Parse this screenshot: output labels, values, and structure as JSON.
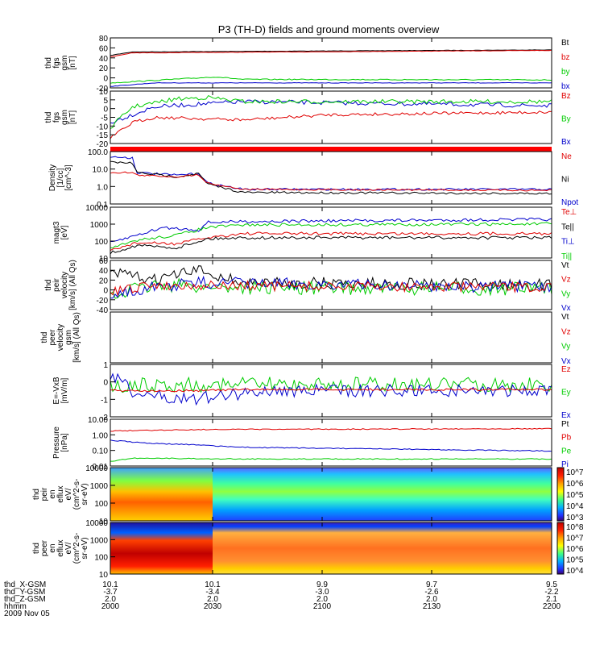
{
  "title": "P3 (TH-D) fields and ground moments overview",
  "colors": {
    "black": "#000000",
    "red": "#e00000",
    "green": "#00cc00",
    "blue": "#0000cc",
    "bar": "#ff0000"
  },
  "panels": [
    {
      "ylabel": [
        "thd",
        "fgs",
        "gsm",
        "[nT]"
      ],
      "ticks": [
        "80",
        "60",
        "40",
        "20",
        "0",
        "-20"
      ],
      "legend": [
        {
          "text": "Bt",
          "color": "black"
        },
        {
          "text": "bz",
          "color": "red"
        },
        {
          "text": "by",
          "color": "green"
        },
        {
          "text": "bx",
          "color": "blue"
        }
      ]
    },
    {
      "ylabel": [
        "thd",
        "fgs",
        "gsm",
        "[nT]"
      ],
      "ticks": [
        "10",
        "5",
        "0",
        "-5",
        "-10",
        "-15",
        "-20"
      ],
      "legend": [
        {
          "text": "Bz",
          "color": "red"
        },
        {
          "text": "By",
          "color": "green"
        },
        {
          "text": "Bx",
          "color": "blue"
        }
      ]
    },
    {
      "ylabel": [
        "Density",
        "[1/cc]",
        "[cm^-3]"
      ],
      "ticks": [
        "100.0",
        "10.0",
        "1.0",
        "0.1"
      ],
      "legend": [
        {
          "text": "Ne",
          "color": "red"
        },
        {
          "text": "Ni",
          "color": "black"
        },
        {
          "text": "Npot",
          "color": "blue"
        }
      ]
    },
    {
      "ylabel": [
        "magt3",
        "[eV]"
      ],
      "ticks": [
        "10000",
        "1000",
        "100",
        "10"
      ],
      "legend": [
        {
          "text": "Te⊥",
          "color": "red"
        },
        {
          "text": "Te||",
          "color": "black"
        },
        {
          "text": "Ti⊥",
          "color": "blue"
        },
        {
          "text": "Ti||",
          "color": "green"
        }
      ]
    },
    {
      "ylabel": [
        "thd",
        "peir",
        "velocity",
        "[km/s] (All Qs)"
      ],
      "ticks": [
        "60",
        "40",
        "20",
        "0",
        "-20",
        "-40"
      ],
      "legend": [
        {
          "text": "Vt",
          "color": "black"
        },
        {
          "text": "Vz",
          "color": "red"
        },
        {
          "text": "Vy",
          "color": "green"
        },
        {
          "text": "Vx",
          "color": "blue"
        }
      ]
    },
    {
      "ylabel": [
        "thd",
        "peer",
        "velocity",
        "gsm",
        "[km/s] (All Qs)"
      ],
      "ticks": [],
      "legend": [
        {
          "text": "Vt",
          "color": "black"
        },
        {
          "text": "Vz",
          "color": "red"
        },
        {
          "text": "Vy",
          "color": "green"
        },
        {
          "text": "Vx",
          "color": "blue"
        }
      ]
    },
    {
      "ylabel": [
        "E=-VxB",
        "[mV/m]"
      ],
      "ticks": [
        "1",
        "0",
        "-1",
        "-2"
      ],
      "legend": [
        {
          "text": "Ez",
          "color": "red"
        },
        {
          "text": "Ey",
          "color": "green"
        },
        {
          "text": "Ex",
          "color": "blue"
        }
      ]
    },
    {
      "ylabel": [
        "Pressure",
        "[nPa]"
      ],
      "ticks": [
        "10.00",
        "1.00",
        "0.10",
        "0.01"
      ],
      "legend": [
        {
          "text": "Pt",
          "color": "black"
        },
        {
          "text": "Pb",
          "color": "red"
        },
        {
          "text": "Pe",
          "color": "green"
        },
        {
          "text": "Pi",
          "color": "blue"
        }
      ]
    },
    {
      "ylabel": [
        "thd",
        "peir",
        "en",
        "eflux",
        "eV/",
        "(cm^2-s-",
        "sr-eV)"
      ],
      "ticks": [
        "10000",
        "1000",
        "100",
        "10"
      ],
      "colorbar": [
        "10^7",
        "10^6",
        "10^5",
        "10^4",
        "10^3"
      ]
    },
    {
      "ylabel": [
        "thd",
        "peer",
        "en",
        "eflux",
        "eV/",
        "(cm^2-s-",
        "sr-eV)"
      ],
      "ticks": [
        "10000",
        "1000",
        "100",
        "10"
      ],
      "colorbar": [
        "10^8",
        "10^7",
        "10^6",
        "10^5",
        "10^4"
      ]
    }
  ],
  "footer": {
    "rows": [
      {
        "label": "thd_X-GSM",
        "values": [
          "10.1",
          "10.1",
          "9.9",
          "9.7",
          "9.5"
        ]
      },
      {
        "label": "thd_Y-GSM",
        "values": [
          "-3.7",
          "-3.4",
          "-3.0",
          "-2.6",
          "-2.2"
        ]
      },
      {
        "label": "thd_Z-GSM",
        "values": [
          "2.0",
          "2.0",
          "2.0",
          "2.0",
          "2.1"
        ]
      },
      {
        "label": "hhmm",
        "values": [
          "2000",
          "2030",
          "2100",
          "2130",
          "2200"
        ]
      }
    ],
    "date": "2009 Nov 05"
  },
  "chart_data": {
    "type": "line",
    "x_unit": "hhmm",
    "x_range": [
      "2000",
      "2200"
    ],
    "series": [
      {
        "panel": 1,
        "name": "Bt",
        "x": [
          "2000",
          "2010",
          "2030",
          "2100",
          "2130",
          "2200"
        ],
        "values": [
          47,
          52,
          53,
          55,
          57,
          58
        ]
      },
      {
        "panel": 1,
        "name": "bz",
        "x": [
          "2000",
          "2010",
          "2030",
          "2100",
          "2130",
          "2200"
        ],
        "values": [
          45,
          51,
          52,
          55,
          57,
          58
        ]
      },
      {
        "panel": 1,
        "name": "by",
        "x": [
          "2000",
          "2010",
          "2020",
          "2030",
          "2100",
          "2200"
        ],
        "values": [
          -7,
          3,
          6,
          2,
          0,
          0
        ]
      },
      {
        "panel": 1,
        "name": "bx",
        "x": [
          "2000",
          "2010",
          "2030",
          "2100",
          "2200"
        ],
        "values": [
          -15,
          -7,
          -4,
          -3,
          -3
        ]
      },
      {
        "panel": 3,
        "name": "Ne",
        "x": [
          "2000",
          "2010",
          "2020",
          "2025",
          "2030",
          "2100",
          "2200"
        ],
        "values": [
          15,
          10,
          5,
          8,
          1.2,
          1.1,
          1.0
        ]
      },
      {
        "panel": 3,
        "name": "Ni",
        "x": [
          "2000",
          "2010",
          "2020",
          "2025",
          "2030",
          "2100",
          "2200"
        ],
        "values": [
          40,
          10,
          4,
          7,
          0.8,
          0.7,
          0.6
        ]
      },
      {
        "panel": 3,
        "name": "Npot",
        "x": [
          "2000",
          "2010",
          "2020",
          "2025",
          "2030",
          "2100",
          "2200"
        ],
        "values": [
          80,
          12,
          4,
          6,
          1.0,
          1.0,
          1.0
        ]
      },
      {
        "panel": 4,
        "name": "Ti⊥",
        "x": [
          "2000",
          "2010",
          "2020",
          "2030",
          "2100",
          "2200"
        ],
        "values": [
          200,
          600,
          400,
          2000,
          2500,
          2500
        ]
      },
      {
        "panel": 4,
        "name": "Ti||",
        "x": [
          "2000",
          "2010",
          "2020",
          "2030",
          "2100",
          "2200"
        ],
        "values": [
          100,
          400,
          300,
          1200,
          1400,
          1200
        ]
      },
      {
        "panel": 4,
        "name": "Te⊥",
        "x": [
          "2000",
          "2010",
          "2020",
          "2030",
          "2100",
          "2200"
        ],
        "values": [
          70,
          200,
          150,
          300,
          300,
          300
        ]
      },
      {
        "panel": 4,
        "name": "Te||",
        "x": [
          "2000",
          "2010",
          "2020",
          "2030",
          "2100",
          "2200"
        ],
        "values": [
          60,
          150,
          120,
          200,
          200,
          200
        ]
      },
      {
        "panel": 5,
        "name": "Vt",
        "x": [
          "2000",
          "2010",
          "2020",
          "2030",
          "2100",
          "2200"
        ],
        "values": [
          35,
          30,
          40,
          20,
          15,
          15
        ]
      },
      {
        "panel": 8,
        "name": "Pb",
        "x": [
          "2000",
          "2030",
          "2200"
        ],
        "values": [
          1.1,
          1.2,
          1.3
        ]
      },
      {
        "panel": 8,
        "name": "Pi",
        "x": [
          "2000",
          "2030",
          "2100",
          "2200"
        ],
        "values": [
          0.3,
          0.15,
          0.12,
          0.1
        ]
      },
      {
        "panel": 8,
        "name": "Pe",
        "x": [
          "2000",
          "2030",
          "2200"
        ],
        "values": [
          0.025,
          0.02,
          0.02
        ]
      }
    ]
  }
}
